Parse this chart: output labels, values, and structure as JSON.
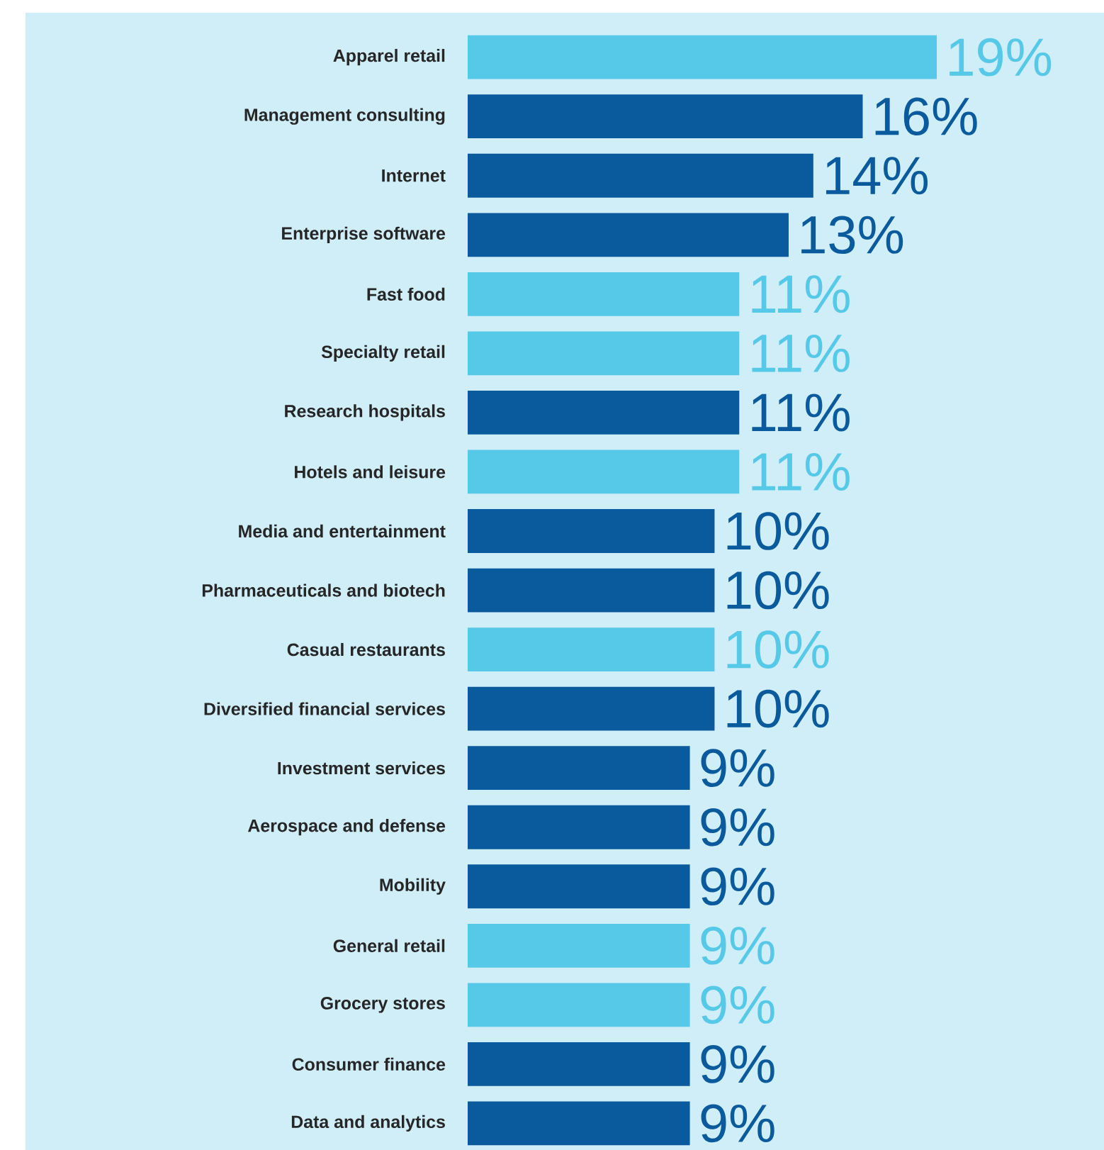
{
  "chart_data": {
    "type": "bar",
    "orientation": "horizontal",
    "categories": [
      "Apparel retail",
      "Management consulting",
      "Internet",
      "Enterprise software",
      "Fast food",
      "Specialty retail",
      "Research hospitals",
      "Hotels and leisure",
      "Media and entertainment",
      "Pharmaceuticals and biotech",
      "Casual restaurants",
      "Diversified financial services",
      "Investment services",
      "Aerospace and defense",
      "Mobility",
      "General retail",
      "Grocery stores",
      "Consumer finance",
      "Data and analytics"
    ],
    "values": [
      19,
      16,
      14,
      13,
      11,
      11,
      11,
      11,
      10,
      10,
      10,
      10,
      9,
      9,
      9,
      9,
      9,
      9,
      9
    ],
    "value_labels": [
      "19%",
      "16%",
      "14%",
      "13%",
      "11%",
      "11%",
      "11%",
      "11%",
      "10%",
      "10%",
      "10%",
      "10%",
      "9%",
      "9%",
      "9%",
      "9%",
      "9%",
      "9%",
      "9%"
    ],
    "colors": [
      "#56c8e8",
      "#0a5a9e",
      "#0a5a9e",
      "#0a5a9e",
      "#56c8e8",
      "#56c8e8",
      "#0a5a9e",
      "#56c8e8",
      "#0a5a9e",
      "#0a5a9e",
      "#56c8e8",
      "#0a5a9e",
      "#0a5a9e",
      "#0a5a9e",
      "#0a5a9e",
      "#56c8e8",
      "#56c8e8",
      "#0a5a9e",
      "#0a5a9e"
    ]
  }
}
